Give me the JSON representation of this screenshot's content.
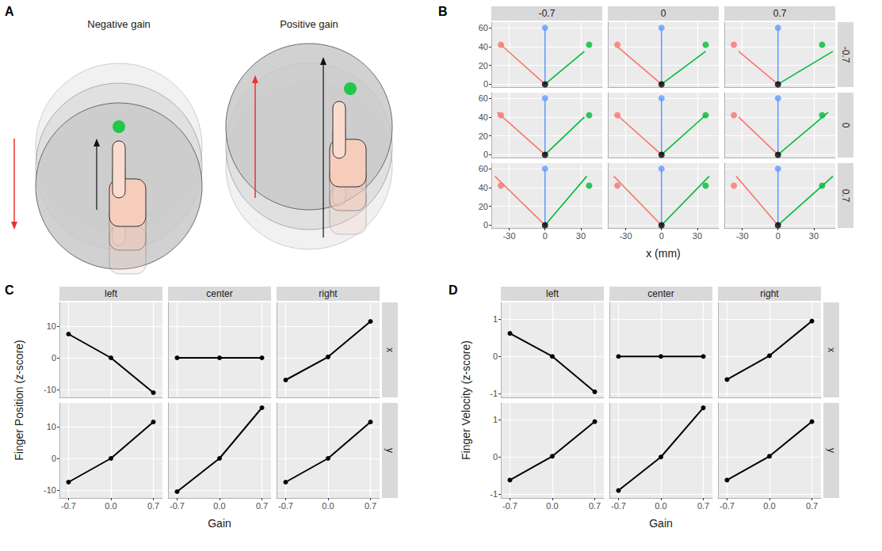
{
  "panel_a": {
    "panel": "A",
    "titles": [
      "Negative gain",
      "Positive gain"
    ]
  },
  "chart_data": [
    {
      "type": "line",
      "panel": "B",
      "x_label": "x (mm)",
      "column_strips": [
        "-0.7",
        "0",
        "0.7"
      ],
      "row_strips": [
        "-0.7",
        "0",
        "0.7"
      ],
      "xlim": [
        -45,
        48
      ],
      "ylim": [
        -3,
        66
      ],
      "xticks": [
        -30,
        0,
        30
      ],
      "yticks": [
        0,
        20,
        40,
        60
      ],
      "grid": true,
      "points": [
        {
          "type": "scatter",
          "marker": "circle",
          "x": [
            -37,
            0,
            37
          ],
          "values": [
            42,
            60,
            42
          ],
          "colors": [
            "#F8766D",
            "#619CFF",
            "#00BA38"
          ]
        },
        {
          "type": "scatter",
          "marker": "circle",
          "x": [
            0
          ],
          "values": [
            0
          ],
          "color": "#000000"
        }
      ],
      "facets": [
        [
          {
            "series": [
              {
                "type": "line",
                "color": "#F8766D",
                "x": [
                  0,
                  -37
                ],
                "values": [
                  0,
                  42
                ]
              },
              {
                "type": "line",
                "color": "#619CFF",
                "x": [
                  0,
                  0
                ],
                "values": [
                  0,
                  60
                ]
              },
              {
                "type": "line",
                "color": "#00BA38",
                "x": [
                  0,
                  33
                ],
                "values": [
                  0,
                  35
                ]
              }
            ]
          },
          {
            "series": [
              {
                "type": "line",
                "color": "#F8766D",
                "x": [
                  0,
                  -37
                ],
                "values": [
                  0,
                  40
                ]
              },
              {
                "type": "line",
                "color": "#619CFF",
                "x": [
                  0,
                  0
                ],
                "values": [
                  0,
                  60
                ]
              },
              {
                "type": "line",
                "color": "#00BA38",
                "x": [
                  0,
                  37
                ],
                "values": [
                  0,
                  35
                ]
              }
            ]
          },
          {
            "series": [
              {
                "type": "line",
                "color": "#F8766D",
                "x": [
                  0,
                  -33
                ],
                "values": [
                  0,
                  35
                ]
              },
              {
                "type": "line",
                "color": "#619CFF",
                "x": [
                  0,
                  0
                ],
                "values": [
                  0,
                  60
                ]
              },
              {
                "type": "line",
                "color": "#00BA38",
                "x": [
                  0,
                  46
                ],
                "values": [
                  0,
                  35
                ]
              }
            ]
          }
        ],
        [
          {
            "series": [
              {
                "type": "line",
                "color": "#F8766D",
                "x": [
                  0,
                  -40
                ],
                "values": [
                  0,
                  45
                ]
              },
              {
                "type": "line",
                "color": "#619CFF",
                "x": [
                  0,
                  0
                ],
                "values": [
                  0,
                  60
                ]
              },
              {
                "type": "line",
                "color": "#00BA38",
                "x": [
                  0,
                  33
                ],
                "values": [
                  0,
                  40
                ]
              }
            ]
          },
          {
            "series": [
              {
                "type": "line",
                "color": "#F8766D",
                "x": [
                  0,
                  -37
                ],
                "values": [
                  0,
                  42
                ]
              },
              {
                "type": "line",
                "color": "#619CFF",
                "x": [
                  0,
                  0
                ],
                "values": [
                  0,
                  60
                ]
              },
              {
                "type": "line",
                "color": "#00BA38",
                "x": [
                  0,
                  37
                ],
                "values": [
                  0,
                  42
                ]
              }
            ]
          },
          {
            "series": [
              {
                "type": "line",
                "color": "#F8766D",
                "x": [
                  0,
                  -33
                ],
                "values": [
                  0,
                  40
                ]
              },
              {
                "type": "line",
                "color": "#619CFF",
                "x": [
                  0,
                  0
                ],
                "values": [
                  0,
                  60
                ]
              },
              {
                "type": "line",
                "color": "#00BA38",
                "x": [
                  0,
                  42
                ],
                "values": [
                  0,
                  45
                ]
              }
            ]
          }
        ],
        [
          {
            "series": [
              {
                "type": "line",
                "color": "#F8766D",
                "x": [
                  0,
                  -42
                ],
                "values": [
                  0,
                  52
                ]
              },
              {
                "type": "line",
                "color": "#619CFF",
                "x": [
                  0,
                  0
                ],
                "values": [
                  0,
                  60
                ]
              },
              {
                "type": "line",
                "color": "#00BA38",
                "x": [
                  0,
                  35
                ],
                "values": [
                  0,
                  52
                ]
              }
            ]
          },
          {
            "series": [
              {
                "type": "line",
                "color": "#F8766D",
                "x": [
                  0,
                  -40
                ],
                "values": [
                  0,
                  52
                ]
              },
              {
                "type": "line",
                "color": "#619CFF",
                "x": [
                  0,
                  0
                ],
                "values": [
                  0,
                  60
                ]
              },
              {
                "type": "line",
                "color": "#00BA38",
                "x": [
                  0,
                  40
                ],
                "values": [
                  0,
                  52
                ]
              }
            ]
          },
          {
            "series": [
              {
                "type": "line",
                "color": "#F8766D",
                "x": [
                  0,
                  -35
                ],
                "values": [
                  0,
                  52
                ]
              },
              {
                "type": "line",
                "color": "#619CFF",
                "x": [
                  0,
                  0
                ],
                "values": [
                  0,
                  60
                ]
              },
              {
                "type": "line",
                "color": "#00BA38",
                "x": [
                  0,
                  46
                ],
                "values": [
                  0,
                  52
                ]
              }
            ]
          }
        ]
      ]
    },
    {
      "type": "line",
      "panel": "C",
      "y_label": "Finger Position (z-score)",
      "x_label": "Gain",
      "column_strips": [
        "left",
        "center",
        "right"
      ],
      "row_strips": [
        "x",
        "y"
      ],
      "xlim": [
        -0.85,
        0.85
      ],
      "ylim": [
        -12.5,
        17.5
      ],
      "xticks": [
        -0.7,
        {
          "value": 0,
          "label": "0.0"
        },
        0.7
      ],
      "yticks": [
        -10,
        0,
        10
      ],
      "grid": true,
      "color": "#000000",
      "marker": "circle",
      "x": [
        -0.7,
        0,
        0.7
      ],
      "facets": [
        [
          [
            7.5,
            0,
            -11
          ],
          [
            0,
            0,
            0
          ],
          [
            -7,
            0.3,
            11.5
          ]
        ],
        [
          [
            -7.5,
            0,
            11.5
          ],
          [
            -10.5,
            0,
            16
          ],
          [
            -7.5,
            0,
            11.5
          ]
        ]
      ]
    },
    {
      "type": "line",
      "panel": "D",
      "y_label": "Finger Velocity (z-score)",
      "x_label": "Gain",
      "column_strips": [
        "left",
        "center",
        "right"
      ],
      "row_strips": [
        "x",
        "y"
      ],
      "xlim": [
        -0.85,
        0.85
      ],
      "ylim": [
        -1.1,
        1.45
      ],
      "xticks": [
        -0.7,
        {
          "value": 0,
          "label": "0.0"
        },
        0.7
      ],
      "yticks": [
        -1,
        0,
        1
      ],
      "grid": true,
      "color": "#000000",
      "marker": "circle",
      "x": [
        -0.7,
        0,
        0.7
      ],
      "facets": [
        [
          [
            0.62,
            0,
            -0.95
          ],
          [
            0,
            0,
            0
          ],
          [
            -0.62,
            0.02,
            0.95
          ]
        ],
        [
          [
            -0.62,
            0.02,
            0.95
          ],
          [
            -0.9,
            0,
            1.32
          ],
          [
            -0.62,
            0.02,
            0.95
          ]
        ]
      ]
    }
  ]
}
